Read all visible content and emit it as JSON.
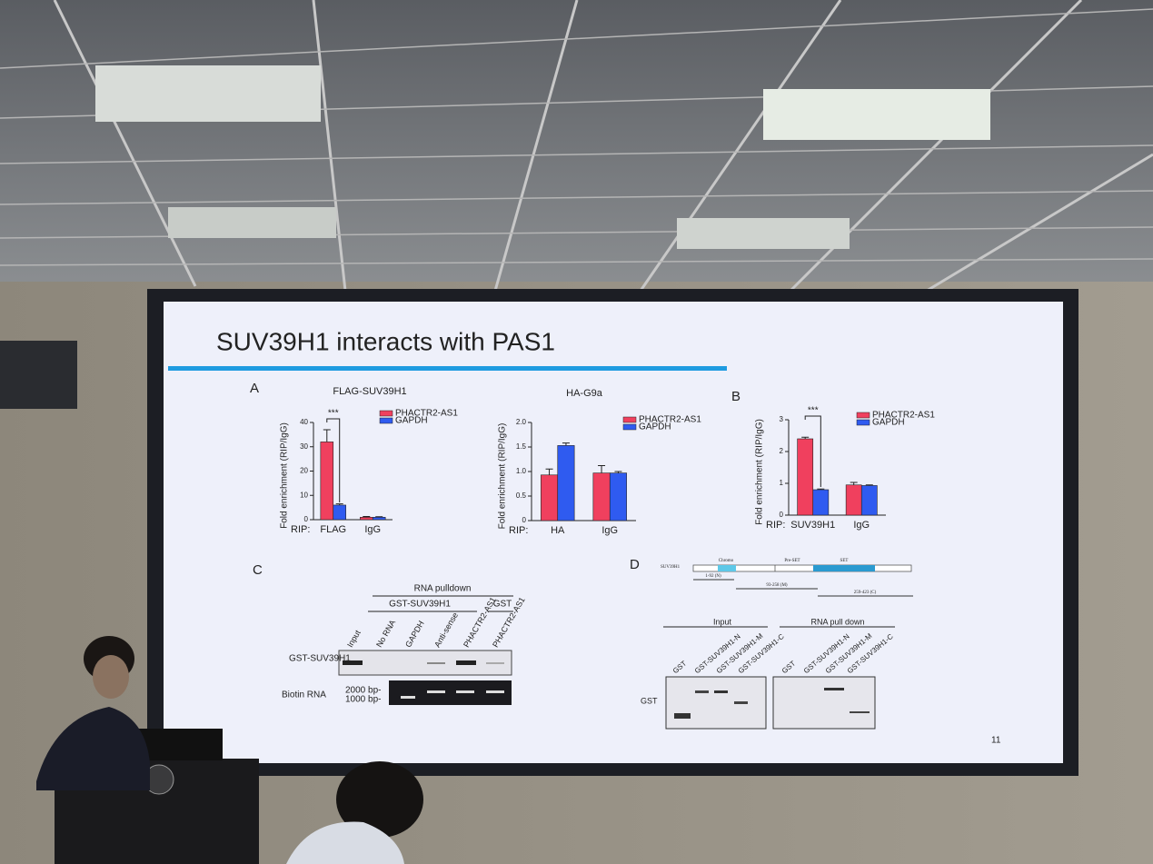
{
  "slide": {
    "title": "SUV39H1 interacts with PAS1",
    "page_number": "11",
    "panel_labels": [
      "A",
      "B",
      "C",
      "D"
    ]
  },
  "chart_data": [
    {
      "type": "bar",
      "title": "FLAG-SUV39H1",
      "ylabel": "Fold enrichment (RIP/IgG)",
      "xlabel": "RIP:",
      "categories": [
        "FLAG",
        "IgG"
      ],
      "annotation": "***",
      "legend": "upper right",
      "ylim": [
        0,
        40
      ],
      "yticks": [
        0,
        10,
        20,
        30,
        40
      ],
      "series": [
        {
          "name": "PHACTR2-AS1",
          "color": "#f0405e",
          "values": [
            32,
            1
          ],
          "errors": [
            5,
            0.3
          ]
        },
        {
          "name": "GAPDH",
          "color": "#2f5bf0",
          "values": [
            6,
            1
          ],
          "errors": [
            0.5,
            0.2
          ]
        }
      ]
    },
    {
      "type": "bar",
      "title": "HA-G9a",
      "ylabel": "Fold enrichment (RIP/IgG)",
      "xlabel": "RIP:",
      "categories": [
        "HA",
        "IgG"
      ],
      "legend": "upper right",
      "ylim": [
        0,
        2
      ],
      "yticks": [
        0,
        0.5,
        {
          "value": 1,
          "label": "1.0"
        },
        1.5,
        {
          "value": 2,
          "label": "2.0"
        }
      ],
      "series": [
        {
          "name": "PHACTR2-AS1",
          "color": "#f0405e",
          "values": [
            0.93,
            0.97
          ],
          "errors": [
            0.12,
            0.15
          ]
        },
        {
          "name": "GAPDH",
          "color": "#2f5bf0",
          "values": [
            1.53,
            0.97
          ],
          "errors": [
            0.05,
            0.03
          ]
        }
      ]
    },
    {
      "type": "bar",
      "ylabel": "Fold enrichment (RIP/IgG)",
      "xlabel": "RIP:",
      "categories": [
        "SUV39H1",
        "IgG"
      ],
      "annotation": "***",
      "legend": "upper right",
      "ylim": [
        0,
        3
      ],
      "yticks": [
        0,
        1,
        2,
        3
      ],
      "series": [
        {
          "name": "PHACTR2-AS1",
          "color": "#f0405e",
          "values": [
            2.4,
            0.95
          ],
          "errors": [
            0.05,
            0.08
          ]
        },
        {
          "name": "GAPDH",
          "color": "#2f5bf0",
          "values": [
            0.8,
            0.93
          ],
          "errors": [
            0.02,
            0.02
          ]
        }
      ]
    }
  ],
  "panel_c": {
    "header": "RNA pulldown",
    "group": "GST-SUV39H1",
    "control": "GST",
    "lanes": [
      "Input",
      "No RNA",
      "GAPDH",
      "Anti-sense",
      "PHACTR2-AS1",
      "PHACTR2-AS1"
    ],
    "rows": [
      "GST-SUV39H1",
      "Biotin RNA"
    ],
    "markers": [
      "2000 bp-",
      "1000 bp-"
    ]
  },
  "panel_d": {
    "protein": "SUV39H1",
    "domains": [
      "Chromo",
      "Pre-SET",
      "SET"
    ],
    "fragments": [
      "1-92 (N)",
      "93-258 (M)",
      "259-423 (C)"
    ],
    "groups": [
      "Input",
      "RNA pull down"
    ],
    "lanes": [
      "GST",
      "GST-SUV39H1-N",
      "GST-SUV39H1-M",
      "GST-SUV39H1-C"
    ],
    "row": "GST"
  }
}
